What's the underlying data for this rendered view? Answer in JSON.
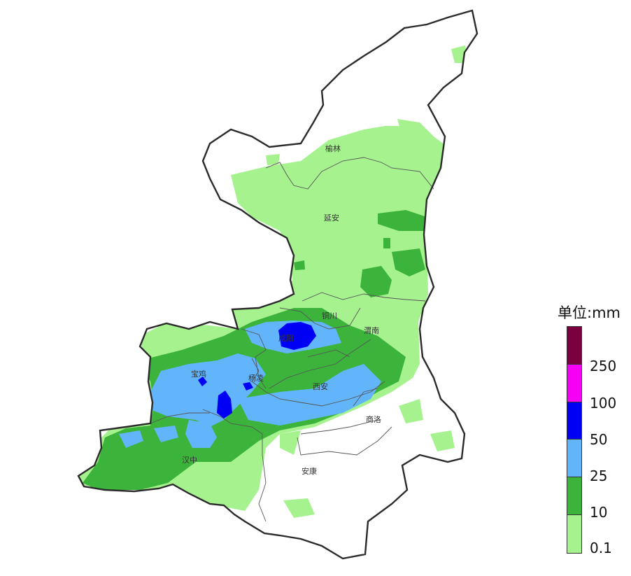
{
  "legend": {
    "title": "单位:mm",
    "colors": [
      "#7a0040",
      "#f500f5",
      "#0000f5",
      "#62b5fa",
      "#3cb43c",
      "#a6f28f"
    ],
    "ticks": [
      "250",
      "100",
      "50",
      "25",
      "10",
      "0.1"
    ]
  },
  "cities": [
    {
      "id": "yulin",
      "label": "榆林"
    },
    {
      "id": "yanan",
      "label": "延安"
    },
    {
      "id": "tongchuan",
      "label": "铜川"
    },
    {
      "id": "weinan",
      "label": "渭南"
    },
    {
      "id": "xianyang",
      "label": "咸阳"
    },
    {
      "id": "baoji",
      "label": "宝鸡"
    },
    {
      "id": "yangling",
      "label": "杨凌"
    },
    {
      "id": "xian",
      "label": "西安"
    },
    {
      "id": "shangluo",
      "label": "商洛"
    },
    {
      "id": "hanzhong",
      "label": "汉中"
    },
    {
      "id": "ankang",
      "label": "安康"
    }
  ]
}
